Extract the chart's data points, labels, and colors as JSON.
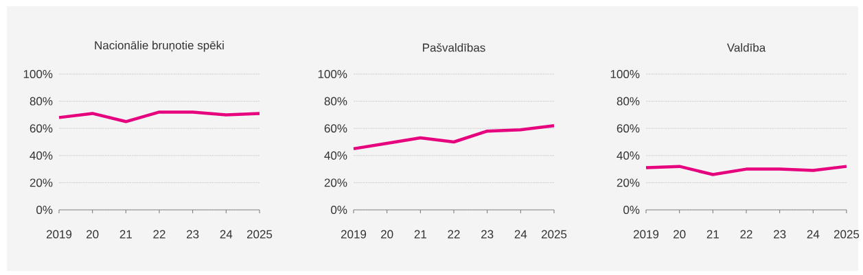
{
  "chart_data": [
    {
      "type": "line",
      "title": "Nacionālie bruņotie spēki",
      "categories": [
        "2019",
        "20",
        "21",
        "22",
        "23",
        "24",
        "2025"
      ],
      "values": [
        68,
        71,
        65,
        72,
        72,
        70,
        71
      ],
      "color": "#e6007e",
      "ylim": [
        0,
        100
      ],
      "yticks": [
        {
          "value": 0,
          "label": "0%"
        },
        {
          "value": 20,
          "label": "20%"
        },
        {
          "value": 40,
          "label": "40%"
        },
        {
          "value": 60,
          "label": "60%"
        },
        {
          "value": 80,
          "label": "80%"
        },
        {
          "value": 100,
          "label": "100%"
        }
      ],
      "grid": "y"
    },
    {
      "type": "line",
      "title": "Pašvaldības",
      "categories": [
        "2019",
        "20",
        "21",
        "22",
        "23",
        "24",
        "2025"
      ],
      "values": [
        45,
        49,
        53,
        50,
        58,
        59,
        62
      ],
      "color": "#e6007e",
      "ylim": [
        0,
        100
      ],
      "yticks": [
        {
          "value": 0,
          "label": "0%"
        },
        {
          "value": 20,
          "label": "20%"
        },
        {
          "value": 40,
          "label": "40%"
        },
        {
          "value": 60,
          "label": "60%"
        },
        {
          "value": 80,
          "label": "80%"
        },
        {
          "value": 100,
          "label": "100%"
        }
      ],
      "grid": "y"
    },
    {
      "type": "line",
      "title": "Valdība",
      "categories": [
        "2019",
        "20",
        "21",
        "22",
        "23",
        "24",
        "2025"
      ],
      "values": [
        31,
        32,
        26,
        30,
        30,
        29,
        32
      ],
      "color": "#e6007e",
      "ylim": [
        0,
        100
      ],
      "yticks": [
        {
          "value": 0,
          "label": "0%"
        },
        {
          "value": 20,
          "label": "20%"
        },
        {
          "value": 40,
          "label": "40%"
        },
        {
          "value": 60,
          "label": "60%"
        },
        {
          "value": 80,
          "label": "80%"
        },
        {
          "value": 100,
          "label": "100%"
        }
      ],
      "grid": "y"
    }
  ]
}
